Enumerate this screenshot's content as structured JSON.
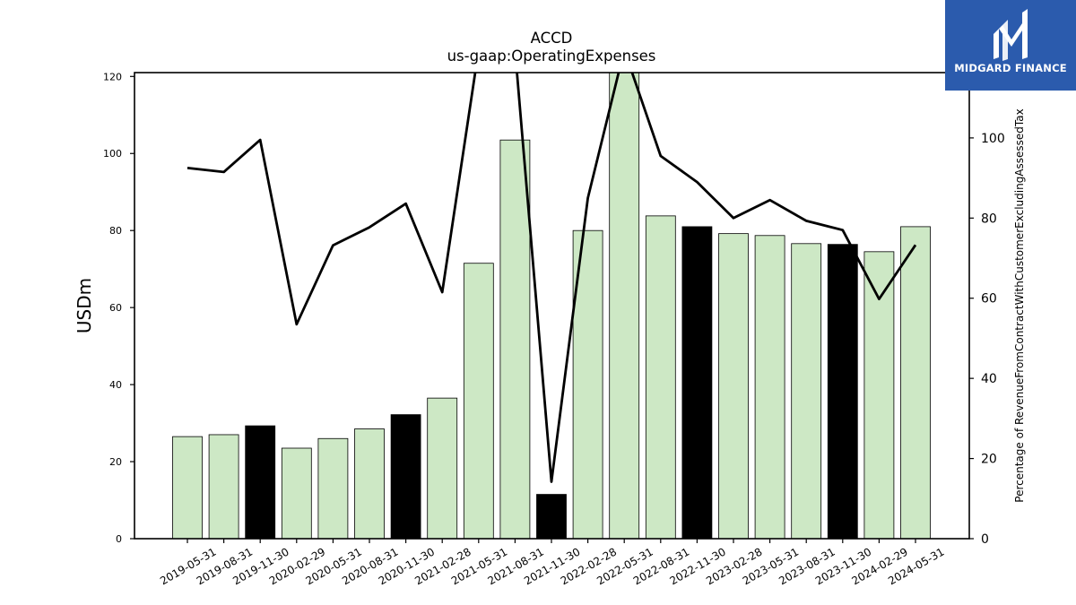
{
  "brand": {
    "name": "MIDGARD FINANCE",
    "color": "#2b5bad"
  },
  "chart_data": {
    "type": "bar",
    "title": "ACCD",
    "subtitle": "us-gaap:OperatingExpenses",
    "ylabel": "USDm",
    "y2label": "Percentage of RevenueFromContractWithCustomerExcludingAssessedTax",
    "ylim": [
      0,
      121
    ],
    "y2lim": [
      0,
      116.3
    ],
    "yticks": [
      "0",
      "20",
      "40",
      "60",
      "80",
      "100",
      "120"
    ],
    "y2ticks": [
      "0",
      "20",
      "40",
      "60",
      "80",
      "100"
    ],
    "categories": [
      "2019-05-31",
      "2019-08-31",
      "2019-11-30",
      "2020-02-29",
      "2020-05-31",
      "2020-08-31",
      "2020-11-30",
      "2021-02-28",
      "2021-05-31",
      "2021-08-31",
      "2021-11-30",
      "2022-02-28",
      "2022-05-31",
      "2022-08-31",
      "2022-11-30",
      "2023-02-28",
      "2023-05-31",
      "2023-08-31",
      "2023-11-30",
      "2024-02-29",
      "2024-05-31"
    ],
    "series": [
      {
        "type": "bar",
        "axis": "left",
        "values": [
          26.5,
          27.0,
          29.3,
          23.5,
          26.0,
          28.5,
          32.2,
          36.5,
          71.5,
          103.5,
          11.5,
          80.0,
          122.0,
          83.8,
          81.0,
          79.2,
          78.7,
          76.6,
          76.4,
          74.5,
          81.0
        ],
        "fill_colors": [
          "#cde8c5",
          "#cde8c5",
          "#000000",
          "#cde8c5",
          "#cde8c5",
          "#cde8c5",
          "#000000",
          "#cde8c5",
          "#cde8c5",
          "#cde8c5",
          "#000000",
          "#cde8c5",
          "#cde8c5",
          "#cde8c5",
          "#000000",
          "#cde8c5",
          "#cde8c5",
          "#cde8c5",
          "#000000",
          "#cde8c5",
          "#cde8c5"
        ]
      },
      {
        "type": "line",
        "axis": "right",
        "color": "#000000",
        "values": [
          92.5,
          91.5,
          99.5,
          53.5,
          73.2,
          77.7,
          83.6,
          61.5,
          122.0,
          122.0,
          14.2,
          85.0,
          122.0,
          95.5,
          89.0,
          80.0,
          84.5,
          79.3,
          77.0,
          59.8,
          73.3
        ]
      }
    ],
    "grid": false,
    "legend": "none"
  }
}
